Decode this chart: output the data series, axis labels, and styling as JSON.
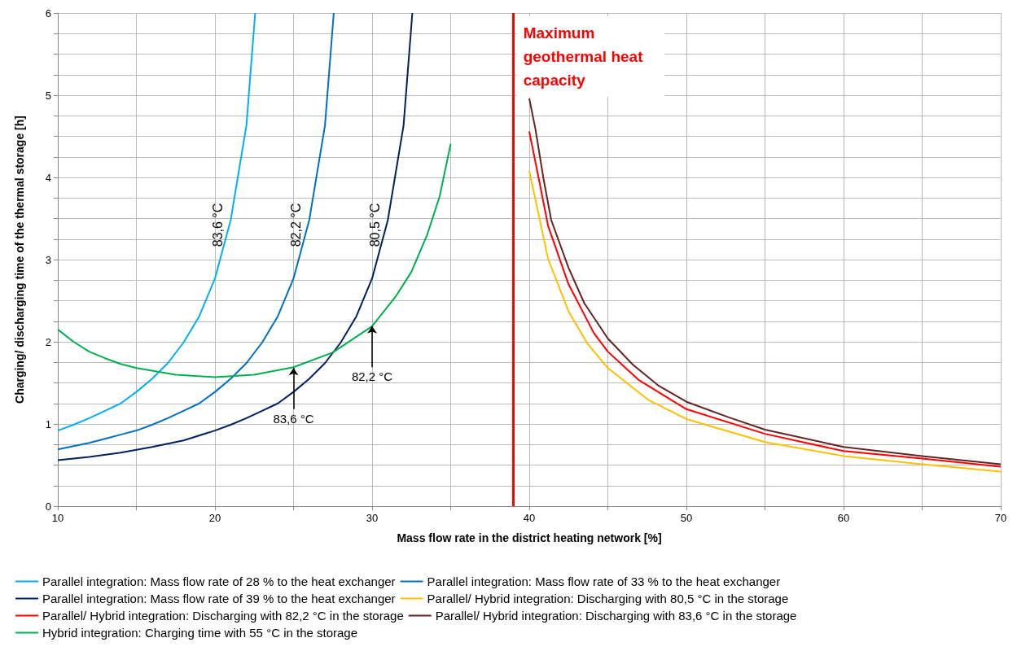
{
  "chart_data": {
    "type": "line",
    "xlabel": "Mass flow rate in the district heating network [%]",
    "ylabel": "Charging/ discharging time of the thermal storage [h]",
    "xlim": [
      10,
      70
    ],
    "xticks": [
      10,
      {
        "value": 15,
        "label": null
      },
      20,
      {
        "value": 25,
        "label": null
      },
      30,
      {
        "value": 35,
        "label": null
      },
      40,
      {
        "value": 45,
        "label": null
      },
      50,
      {
        "value": 55,
        "label": null
      },
      60,
      {
        "value": 65,
        "label": null
      },
      70
    ],
    "ylim": [
      0,
      6
    ],
    "yticks": [
      0,
      {
        "value": 0.25,
        "label": null
      },
      {
        "value": 0.5,
        "label": null
      },
      {
        "value": 0.75,
        "label": null
      },
      1,
      {
        "value": 1.25,
        "label": null
      },
      {
        "value": 1.5,
        "label": null
      },
      {
        "value": 1.75,
        "label": null
      },
      2,
      {
        "value": 2.25,
        "label": null
      },
      {
        "value": 2.5,
        "label": null
      },
      {
        "value": 2.75,
        "label": null
      },
      3,
      {
        "value": 3.25,
        "label": null
      },
      {
        "value": 3.5,
        "label": null
      },
      {
        "value": 3.75,
        "label": null
      },
      4,
      {
        "value": 4.25,
        "label": null
      },
      {
        "value": 4.5,
        "label": null
      },
      {
        "value": 4.75,
        "label": null
      },
      5,
      {
        "value": 5.25,
        "label": null
      },
      {
        "value": 5.5,
        "label": null
      },
      {
        "value": 5.75,
        "label": null
      },
      6
    ],
    "grid": true,
    "legend": "bottom",
    "marker": "none",
    "line_style": "solid",
    "series": [
      {
        "name": "Parallel integration: Mass flow rate of 28 % to the heat exchanger",
        "color": "#00b0f0",
        "x": [
          10,
          11,
          12,
          13,
          14,
          15,
          16,
          17,
          18,
          19,
          20,
          21,
          22,
          22.56
        ],
        "values": [
          0.92,
          0.99,
          1.07,
          1.16,
          1.25,
          1.39,
          1.55,
          1.74,
          1.99,
          2.31,
          2.77,
          3.48,
          4.63,
          6
        ]
      },
      {
        "name": "Parallel integration: Mass flow rate of 33 % to the heat exchanger",
        "color": "#0070c0",
        "x": [
          10,
          11,
          12,
          13,
          14,
          15,
          16,
          17,
          18,
          19,
          20,
          21,
          22,
          23,
          24,
          25,
          26,
          27,
          27.56
        ],
        "values": [
          0.69,
          0.73,
          0.77,
          0.82,
          0.87,
          0.92,
          0.99,
          1.07,
          1.16,
          1.25,
          1.39,
          1.55,
          1.74,
          1.99,
          2.31,
          2.77,
          3.48,
          4.63,
          6
        ]
      },
      {
        "name": "Parallel integration: Mass flow rate of 39 % to the heat exchanger",
        "color": "#002060",
        "x": [
          10,
          12,
          14,
          16,
          18,
          20,
          21,
          22,
          23,
          24,
          25,
          26,
          27,
          28,
          29,
          30,
          31,
          32,
          32.56
        ],
        "values": [
          0.56,
          0.6,
          0.65,
          0.72,
          0.8,
          0.92,
          0.99,
          1.07,
          1.16,
          1.25,
          1.39,
          1.55,
          1.74,
          1.99,
          2.31,
          2.77,
          3.48,
          4.63,
          6
        ]
      },
      {
        "name": "Parallel/ Hybrid integration: Discharging with 80,5 °C in the storage",
        "color": "#ffc000",
        "x": [
          40,
          41.2,
          42.5,
          43.7,
          45,
          47.6,
          50,
          55,
          60,
          65,
          70
        ],
        "values": [
          4.08,
          3.01,
          2.37,
          1.98,
          1.68,
          1.29,
          1.06,
          0.78,
          0.61,
          0.51,
          0.42
        ]
      },
      {
        "name": "Parallel/ Hybrid integration: Discharging with 82,2 °C in the storage",
        "color": "#ff0000",
        "x": [
          40,
          40.6,
          41.2,
          42.5,
          44.1,
          45,
          47,
          50,
          55,
          60,
          65,
          70
        ],
        "values": [
          4.56,
          3.99,
          3.41,
          2.7,
          2.11,
          1.88,
          1.53,
          1.18,
          0.88,
          0.67,
          0.58,
          0.48
        ]
      },
      {
        "name": "Parallel/ Hybrid integration: Discharging with 83,6 °C in the storage",
        "color": "#632523",
        "x": [
          40,
          40.4,
          40.9,
          41.4,
          42.5,
          43.5,
          45,
          46.6,
          48.2,
          50,
          52.7,
          55,
          60,
          65,
          70
        ],
        "values": [
          4.96,
          4.58,
          3.99,
          3.48,
          2.9,
          2.47,
          2.04,
          1.72,
          1.47,
          1.27,
          1.08,
          0.93,
          0.72,
          0.61,
          0.51
        ]
      },
      {
        "name": "Hybrid integration: Charging time with 55 °C in the storage",
        "color": "#00b050",
        "x": [
          10,
          11,
          12,
          13,
          14,
          15,
          17.5,
          20,
          22.5,
          25,
          27.5,
          30,
          31.5,
          32.5,
          33.5,
          34.3,
          35
        ],
        "values": [
          2.15,
          2,
          1.88,
          1.8,
          1.73,
          1.68,
          1.6,
          1.57,
          1.6,
          1.69,
          1.87,
          2.19,
          2.55,
          2.85,
          3.3,
          3.77,
          4.41
        ]
      }
    ],
    "ref_lines": [
      {
        "axis": "x",
        "value": 39,
        "label": "Maximum geothermal heat capacity",
        "color": "#ff0000"
      }
    ],
    "annotations": [
      {
        "text": "83,6 °C",
        "x": 21,
        "y": 3.48
      },
      {
        "text": "82,2 °C",
        "x": 26,
        "y": 3.48
      },
      {
        "text": "80,5 °C",
        "x": 31,
        "y": 3.48
      },
      {
        "text": "83,6 °C",
        "x": 25,
        "y": 1.68
      },
      {
        "text": "82,2 °C",
        "x": 30,
        "y": 2.19
      }
    ]
  }
}
